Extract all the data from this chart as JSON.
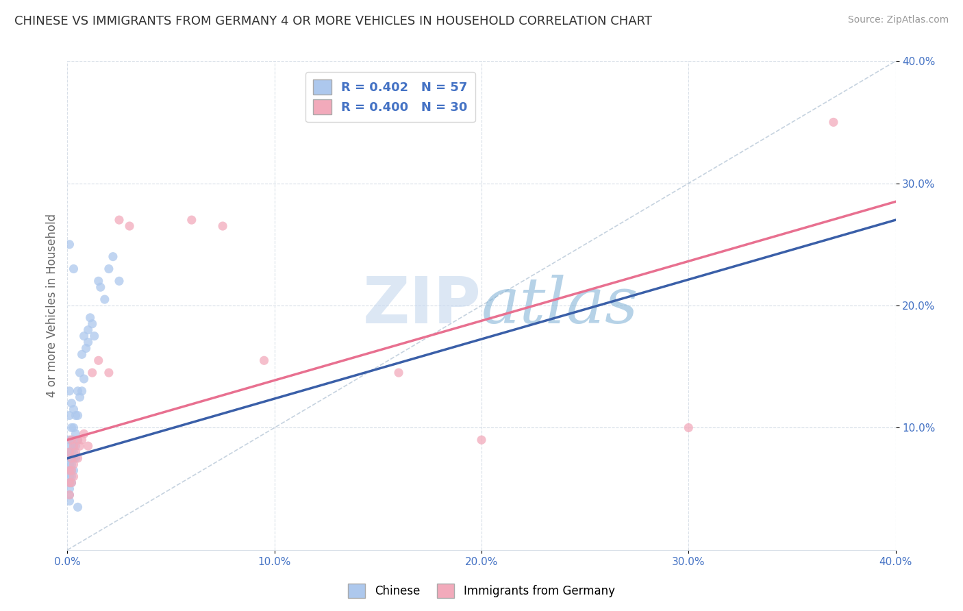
{
  "title": "CHINESE VS IMMIGRANTS FROM GERMANY 4 OR MORE VEHICLES IN HOUSEHOLD CORRELATION CHART",
  "source": "Source: ZipAtlas.com",
  "ylabel": "4 or more Vehicles in Household",
  "xlim": [
    0.0,
    0.4
  ],
  "ylim": [
    0.0,
    0.4
  ],
  "xtick_values": [
    0.0,
    0.1,
    0.2,
    0.3,
    0.4
  ],
  "xtick_labels": [
    "0.0%",
    "10.0%",
    "20.0%",
    "30.0%",
    "40.0%"
  ],
  "ytick_values": [
    0.1,
    0.2,
    0.3,
    0.4
  ],
  "ytick_labels": [
    "10.0%",
    "20.0%",
    "30.0%",
    "40.0%"
  ],
  "legend_entries": [
    "Chinese",
    "Immigrants from Germany"
  ],
  "chinese_color": "#adc8ed",
  "germany_color": "#f2aabb",
  "chinese_line_color": "#3a5fa8",
  "germany_line_color": "#e87090",
  "diagonal_color": "#b8c8d8",
  "watermark_zip": "ZIP",
  "watermark_atlas": "atlas",
  "R_chinese": 0.402,
  "N_chinese": 57,
  "R_germany": 0.4,
  "N_germany": 30,
  "label_color": "#4472c4",
  "background_color": "#ffffff",
  "grid_color": "#d8dfe8",
  "plot_bg": "#ffffff",
  "chinese_points": [
    [
      0.001,
      0.13
    ],
    [
      0.001,
      0.11
    ],
    [
      0.001,
      0.09
    ],
    [
      0.001,
      0.08
    ],
    [
      0.001,
      0.075
    ],
    [
      0.001,
      0.07
    ],
    [
      0.001,
      0.065
    ],
    [
      0.001,
      0.06
    ],
    [
      0.001,
      0.055
    ],
    [
      0.001,
      0.05
    ],
    [
      0.001,
      0.045
    ],
    [
      0.001,
      0.04
    ],
    [
      0.002,
      0.12
    ],
    [
      0.002,
      0.1
    ],
    [
      0.002,
      0.09
    ],
    [
      0.002,
      0.085
    ],
    [
      0.002,
      0.08
    ],
    [
      0.002,
      0.075
    ],
    [
      0.002,
      0.07
    ],
    [
      0.002,
      0.065
    ],
    [
      0.002,
      0.06
    ],
    [
      0.002,
      0.055
    ],
    [
      0.003,
      0.115
    ],
    [
      0.003,
      0.1
    ],
    [
      0.003,
      0.09
    ],
    [
      0.003,
      0.085
    ],
    [
      0.003,
      0.08
    ],
    [
      0.003,
      0.075
    ],
    [
      0.003,
      0.065
    ],
    [
      0.004,
      0.11
    ],
    [
      0.004,
      0.095
    ],
    [
      0.004,
      0.085
    ],
    [
      0.004,
      0.075
    ],
    [
      0.005,
      0.13
    ],
    [
      0.005,
      0.11
    ],
    [
      0.005,
      0.09
    ],
    [
      0.006,
      0.145
    ],
    [
      0.006,
      0.125
    ],
    [
      0.007,
      0.16
    ],
    [
      0.007,
      0.13
    ],
    [
      0.008,
      0.175
    ],
    [
      0.008,
      0.14
    ],
    [
      0.009,
      0.165
    ],
    [
      0.01,
      0.18
    ],
    [
      0.01,
      0.17
    ],
    [
      0.011,
      0.19
    ],
    [
      0.012,
      0.185
    ],
    [
      0.013,
      0.175
    ],
    [
      0.015,
      0.22
    ],
    [
      0.016,
      0.215
    ],
    [
      0.018,
      0.205
    ],
    [
      0.02,
      0.23
    ],
    [
      0.022,
      0.24
    ],
    [
      0.025,
      0.22
    ],
    [
      0.001,
      0.25
    ],
    [
      0.003,
      0.23
    ],
    [
      0.005,
      0.035
    ]
  ],
  "germany_points": [
    [
      0.001,
      0.08
    ],
    [
      0.001,
      0.065
    ],
    [
      0.001,
      0.055
    ],
    [
      0.001,
      0.045
    ],
    [
      0.002,
      0.09
    ],
    [
      0.002,
      0.075
    ],
    [
      0.002,
      0.065
    ],
    [
      0.002,
      0.055
    ],
    [
      0.003,
      0.085
    ],
    [
      0.003,
      0.07
    ],
    [
      0.003,
      0.06
    ],
    [
      0.004,
      0.08
    ],
    [
      0.005,
      0.09
    ],
    [
      0.005,
      0.075
    ],
    [
      0.006,
      0.085
    ],
    [
      0.007,
      0.09
    ],
    [
      0.008,
      0.095
    ],
    [
      0.01,
      0.085
    ],
    [
      0.012,
      0.145
    ],
    [
      0.015,
      0.155
    ],
    [
      0.02,
      0.145
    ],
    [
      0.025,
      0.27
    ],
    [
      0.03,
      0.265
    ],
    [
      0.06,
      0.27
    ],
    [
      0.075,
      0.265
    ],
    [
      0.095,
      0.155
    ],
    [
      0.16,
      0.145
    ],
    [
      0.2,
      0.09
    ],
    [
      0.3,
      0.1
    ],
    [
      0.37,
      0.35
    ]
  ],
  "chinese_line_x": [
    0.0,
    0.4
  ],
  "chinese_line_y_start": 0.075,
  "chinese_line_y_end": 0.27,
  "germany_line_x": [
    0.0,
    0.4
  ],
  "germany_line_y_start": 0.09,
  "germany_line_y_end": 0.285
}
